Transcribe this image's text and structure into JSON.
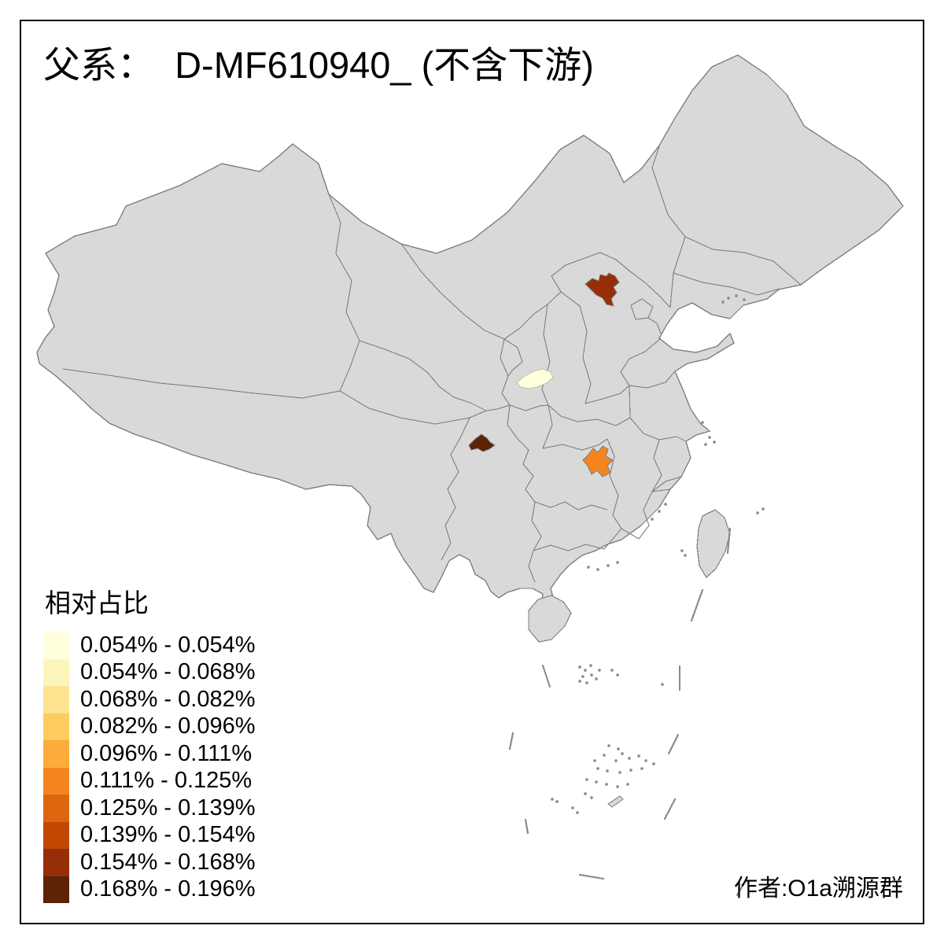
{
  "title": "父系：  D-MF610940_ (不含下游)",
  "attribution": "作者:O1a溯源群",
  "legend": {
    "title": "相对占比",
    "classes": [
      {
        "color": "#FFFFDE",
        "label": "0.054% - 0.054%"
      },
      {
        "color": "#FBF5BC",
        "label": "0.054% - 0.068%"
      },
      {
        "color": "#FDE38E",
        "label": "0.068% - 0.082%"
      },
      {
        "color": "#FDCB5F",
        "label": "0.082% - 0.096%"
      },
      {
        "color": "#FCAC3A",
        "label": "0.096% - 0.111%"
      },
      {
        "color": "#F4851E",
        "label": "0.111% - 0.125%"
      },
      {
        "color": "#DD660E",
        "label": "0.125% - 0.139%"
      },
      {
        "color": "#C24802",
        "label": "0.139% - 0.154%"
      },
      {
        "color": "#962F08",
        "label": "0.154% - 0.168%"
      },
      {
        "color": "#5E2206",
        "label": "0.168% - 0.196%"
      }
    ]
  },
  "map": {
    "land_color": "#D9D9D9",
    "border_color": "#7F7F7F",
    "sea_mark_color": "#8C8C8C",
    "highlighted_regions": [
      {
        "id": "region-north",
        "color": "#962F08",
        "bin": "0.154% - 0.168%"
      },
      {
        "id": "region-central",
        "color": "#FFFFDE",
        "bin": "0.054% - 0.054%"
      },
      {
        "id": "region-southwest",
        "color": "#5E2206",
        "bin": "0.168% - 0.196%"
      },
      {
        "id": "region-south",
        "color": "#F4851E",
        "bin": "0.111% - 0.125%"
      }
    ]
  }
}
